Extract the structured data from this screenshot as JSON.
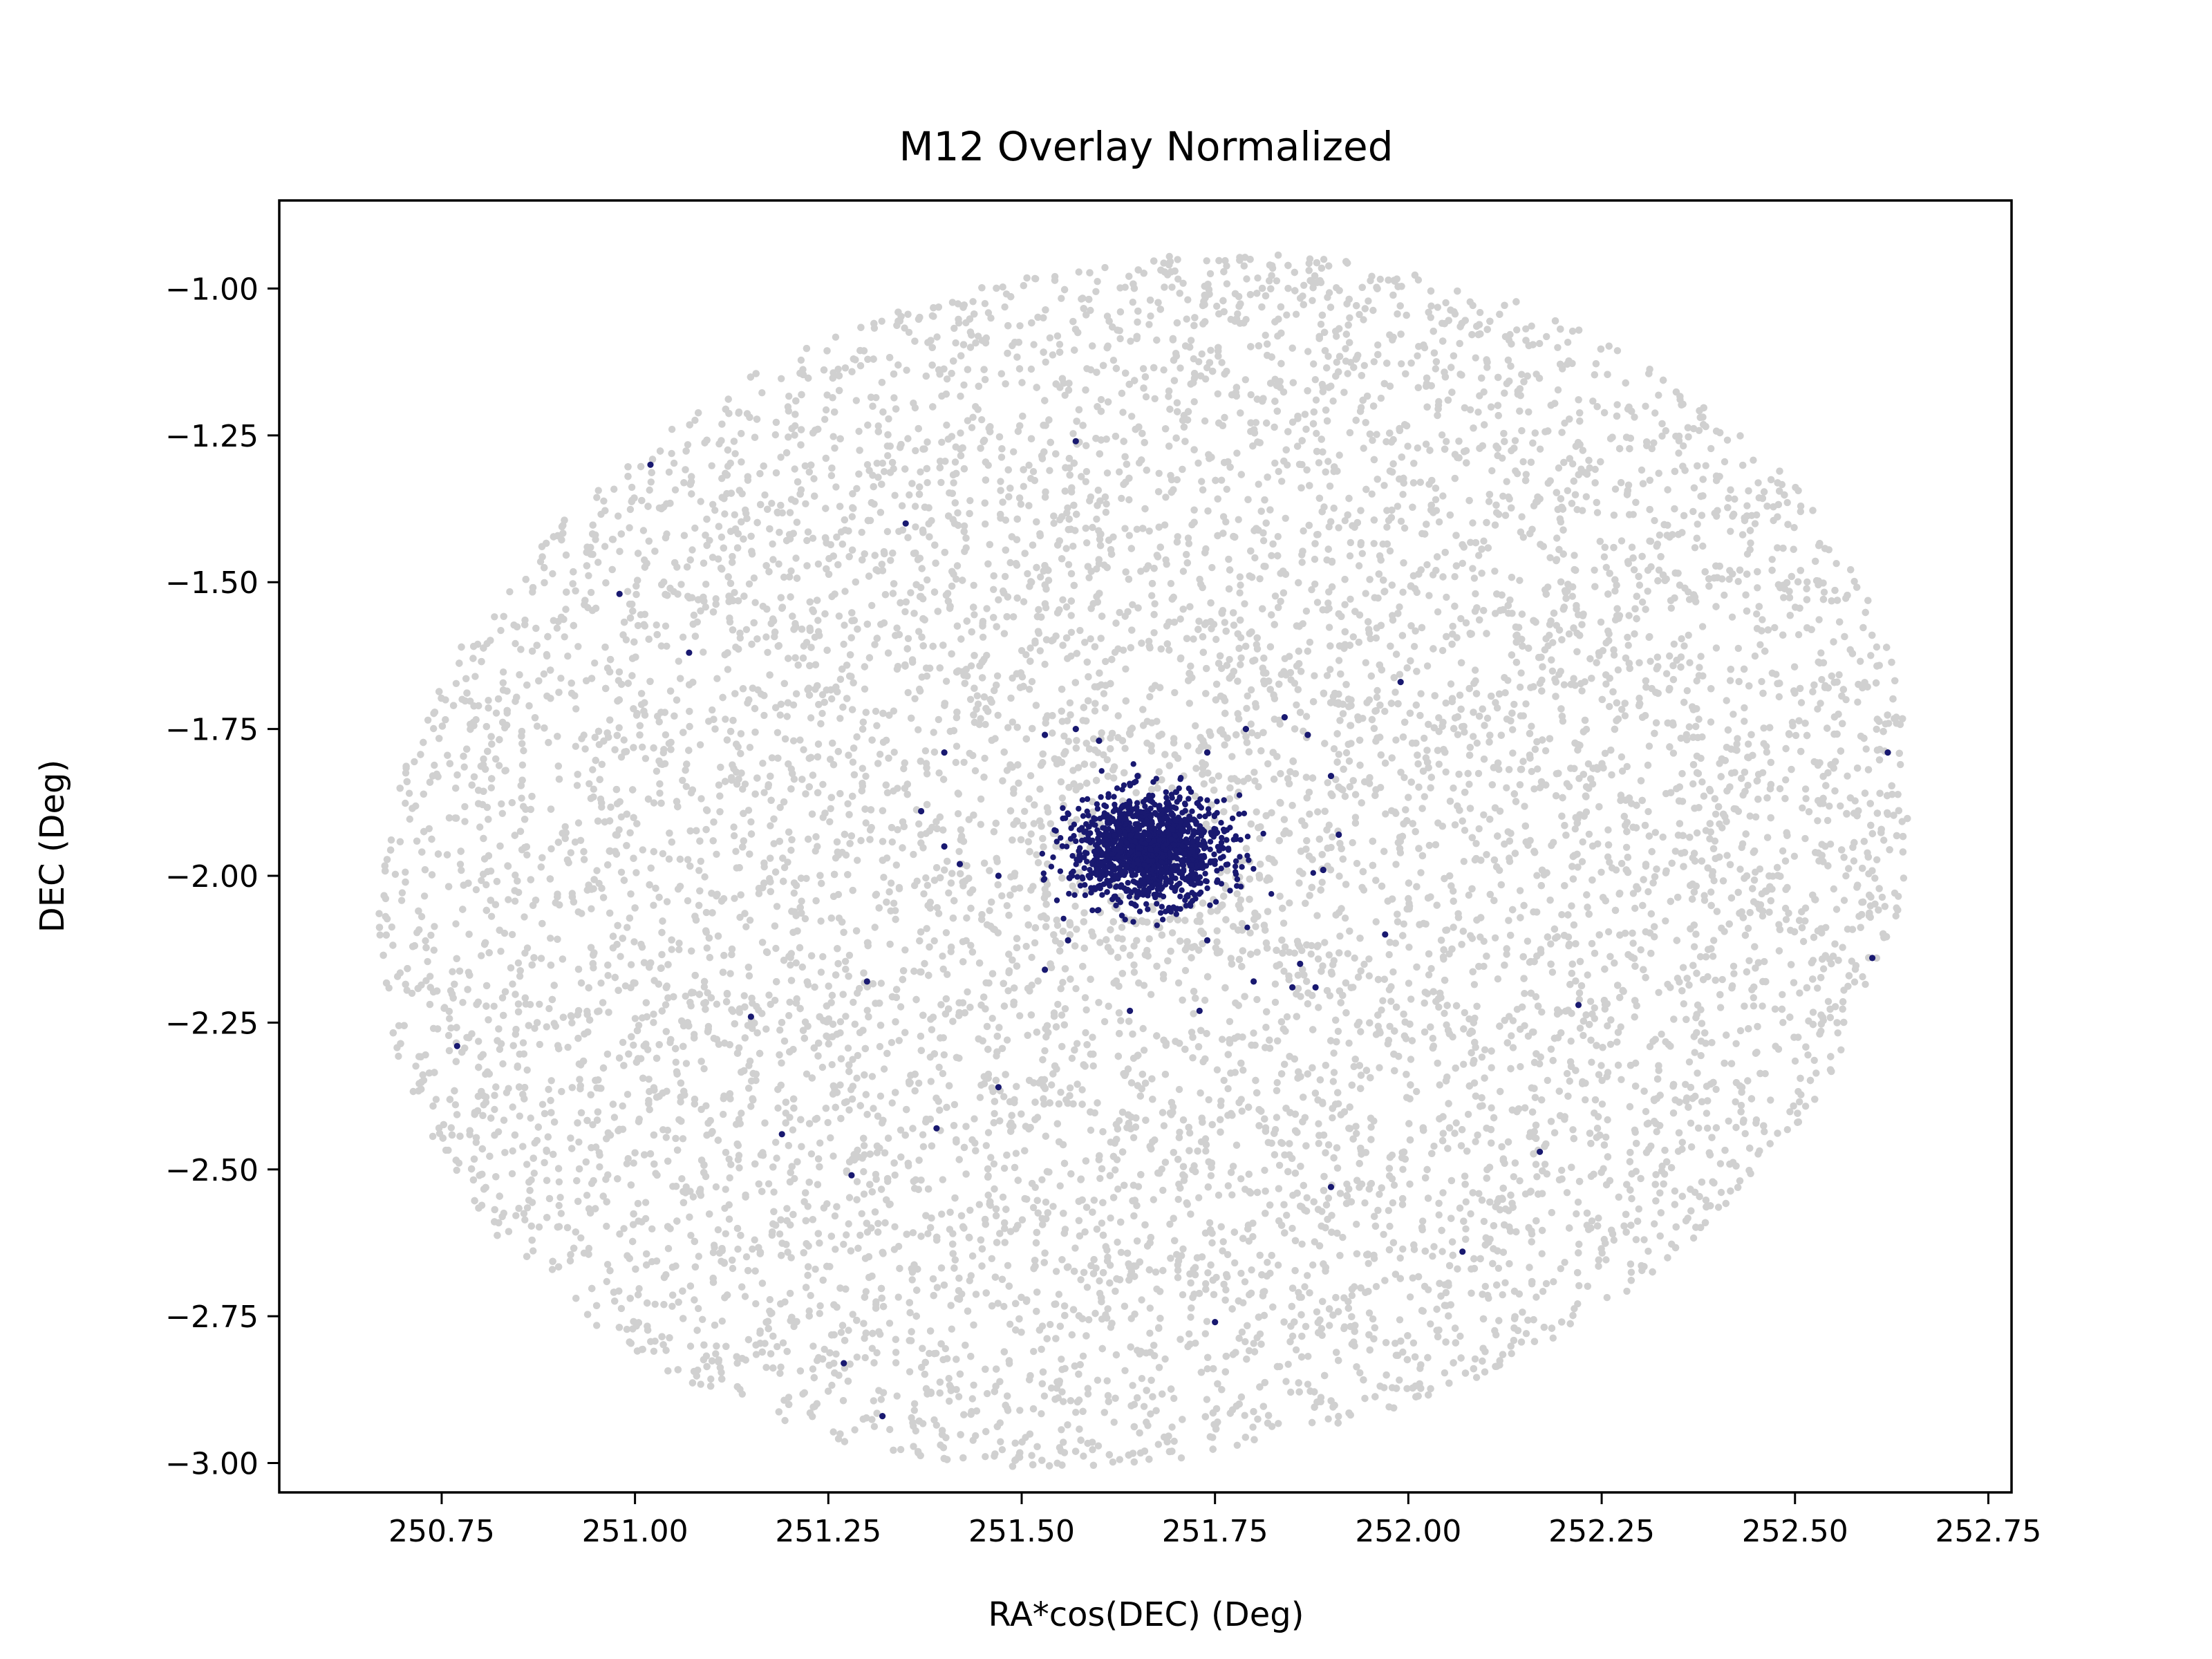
{
  "chart_data": {
    "type": "scatter",
    "title": "M12 Overlay Normalized",
    "xlabel": "RA*cos(DEC) (Deg)",
    "ylabel": "DEC (Deg)",
    "xlim": [
      250.54,
      252.78
    ],
    "ylim": [
      -3.05,
      -0.85
    ],
    "x_ticks": [
      250.75,
      251.0,
      251.25,
      251.5,
      251.75,
      252.0,
      252.25,
      252.5,
      252.75
    ],
    "x_tick_labels": [
      "250.75",
      "251.00",
      "251.25",
      "251.50",
      "251.75",
      "252.00",
      "252.25",
      "252.50",
      "252.75"
    ],
    "y_ticks": [
      -1.0,
      -1.25,
      -1.5,
      -1.75,
      -2.0,
      -2.25,
      -2.5,
      -2.75,
      -3.0
    ],
    "y_tick_labels": [
      "−1.00",
      "−1.25",
      "−1.50",
      "−1.75",
      "−2.00",
      "−2.25",
      "−2.50",
      "−2.75",
      "−3.00"
    ],
    "grid": false,
    "colors": {
      "field": "#d0d0d0",
      "members": "#191970"
    },
    "field_region": {
      "center": [
        251.66,
        -1.975
      ],
      "semi_axes": [
        1.0,
        1.02
      ],
      "rotation_deg": -12
    },
    "cluster_core": {
      "center": [
        251.665,
        -1.955
      ],
      "radius_x": 0.09,
      "radius_y": 0.08
    },
    "series": [
      {
        "role": "members",
        "x": [
          251.57,
          251.02,
          251.35,
          250.98,
          251.07,
          251.99,
          252.62,
          251.4,
          251.37,
          251.4,
          251.42,
          251.47,
          251.53,
          251.57,
          251.6,
          251.65,
          251.74,
          251.79,
          251.84,
          251.87,
          251.9,
          251.91,
          251.97,
          251.86,
          251.89,
          251.3,
          251.15,
          250.77,
          251.19,
          251.28,
          251.39,
          251.47,
          251.64,
          251.73,
          251.9,
          252.07,
          252.17,
          252.22,
          252.6,
          251.75,
          251.27,
          251.32,
          251.53,
          251.56,
          251.74,
          251.8,
          251.85,
          251.88
        ],
        "y": [
          -1.26,
          -1.3,
          -1.4,
          -1.52,
          -1.62,
          -1.67,
          -1.79,
          -1.79,
          -1.89,
          -1.95,
          -1.98,
          -2.0,
          -1.76,
          -1.75,
          -1.77,
          -1.83,
          -1.79,
          -1.75,
          -1.73,
          -1.76,
          -1.83,
          -1.93,
          -2.1,
          -2.15,
          -1.99,
          -2.18,
          -2.24,
          -2.29,
          -2.44,
          -2.51,
          -2.43,
          -2.36,
          -2.23,
          -2.23,
          -2.53,
          -2.64,
          -2.47,
          -2.22,
          -2.14,
          -2.76,
          -2.83,
          -2.92,
          -2.16,
          -2.11,
          -2.11,
          -2.18,
          -2.19,
          -2.19
        ]
      }
    ]
  }
}
